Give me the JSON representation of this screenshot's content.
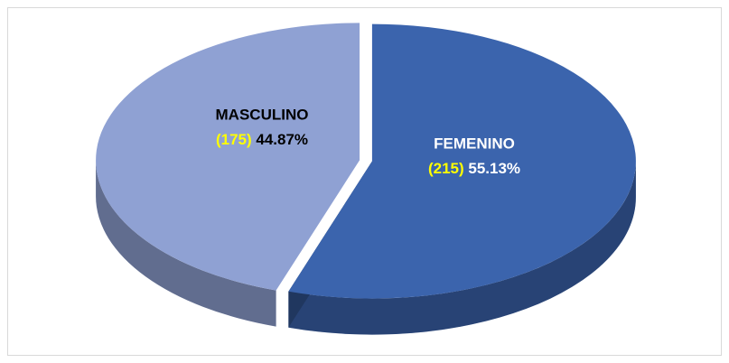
{
  "chart_data": {
    "type": "pie3d",
    "categories": [
      "FEMENINO",
      "MASCULINO"
    ],
    "values": [
      55.13,
      44.87
    ],
    "value_labels": [
      "55.13%",
      "44.87%"
    ],
    "counts": [
      215,
      175
    ],
    "count_labels": [
      "(215)",
      "(175)"
    ],
    "colors": [
      "#3b64ad",
      "#8fa1d3"
    ]
  }
}
